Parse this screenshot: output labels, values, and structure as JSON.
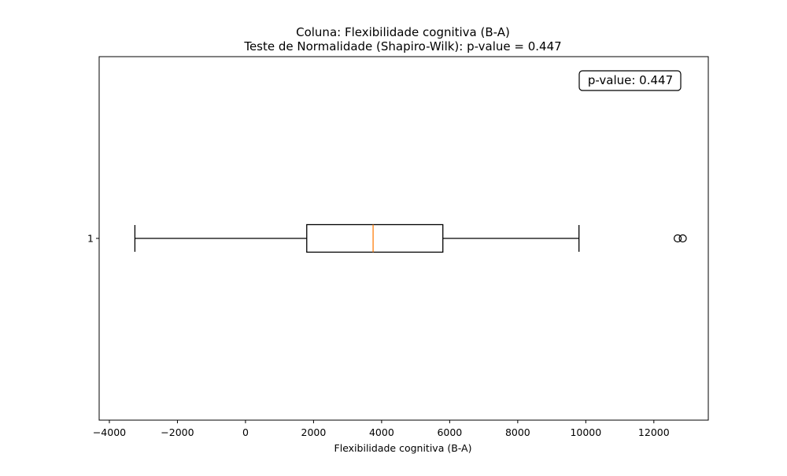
{
  "chart_data": {
    "type": "boxplot",
    "orientation": "horizontal",
    "title_lines": [
      "Coluna: Flexibilidade cognitiva (B-A)",
      "Teste de Normalidade (Shapiro-Wilk): p-value = 0.447"
    ],
    "xlabel": "Flexibilidade cognitiva (B-A)",
    "ylabel": "",
    "xlim": [
      -4300,
      13600
    ],
    "x_ticks": [
      -4000,
      -2000,
      0,
      2000,
      4000,
      6000,
      8000,
      10000,
      12000
    ],
    "x_tick_labels": [
      "−4000",
      "−2000",
      "0",
      "2000",
      "4000",
      "6000",
      "8000",
      "10000",
      "12000"
    ],
    "y_tick_labels": [
      "1"
    ],
    "grid": false,
    "boxes": [
      {
        "label": "1",
        "whisker_low": -3250,
        "q1": 1800,
        "median": 3750,
        "q3": 5800,
        "whisker_high": 9800,
        "outliers": [
          12700,
          12850
        ]
      }
    ],
    "annotation": {
      "text": "p-value: 0.447",
      "position": "top-right"
    },
    "colors": {
      "box": "#000000",
      "median": "#ff7f0e",
      "outlier": "#000000"
    }
  }
}
